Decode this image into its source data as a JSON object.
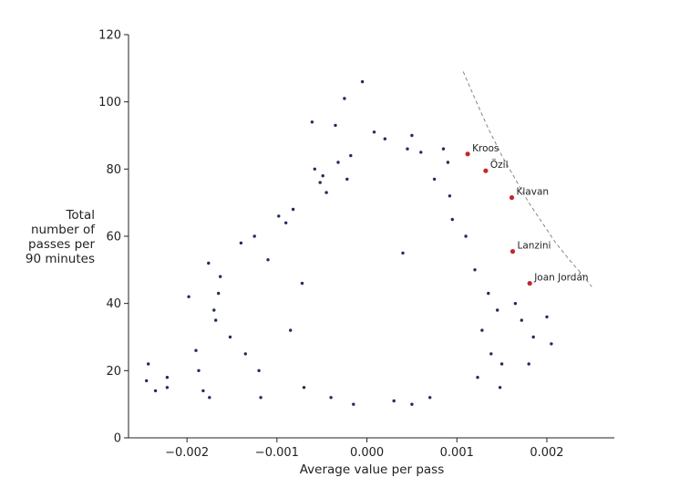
{
  "chart_data": {
    "type": "scatter",
    "xlabel": "Average value per pass",
    "ylabel_lines": [
      "Total",
      "number of",
      "passes per",
      "90 minutes"
    ],
    "xlim": [
      -0.00265,
      0.00275
    ],
    "ylim": [
      0,
      120
    ],
    "xticks": [
      -0.002,
      -0.001,
      0.0,
      0.001,
      0.002
    ],
    "xtick_labels": [
      "−0.002",
      "−0.001",
      "0.000",
      "0.001",
      "0.002"
    ],
    "yticks": [
      0,
      20,
      40,
      60,
      80,
      100,
      120
    ],
    "ytick_labels": [
      "0",
      "20",
      "40",
      "60",
      "80",
      "100",
      "120"
    ],
    "grid": false,
    "colors": {
      "points": "#1f2f5a",
      "highlight": "#c0282d",
      "curve": "#888888"
    },
    "series": [
      {
        "role": "players",
        "x": [
          -0.00243,
          -0.00245,
          -0.00235,
          -0.00222,
          -0.00222,
          -0.0019,
          -0.00198,
          -0.00187,
          -0.00182,
          -0.00175,
          -0.00176,
          -0.0017,
          -0.00165,
          -0.00152,
          -0.00163,
          -0.0014,
          -0.0011,
          -0.00125,
          -0.00098,
          -0.00082,
          -0.00072,
          -0.00061,
          -0.00052,
          -0.00045,
          -0.00035,
          -0.00025,
          -0.00018,
          -5e-05,
          8e-05,
          0.0002,
          0.0004,
          0.0005,
          0.0006,
          0.00075,
          0.00085,
          0.00095,
          -0.00058,
          -0.00049,
          -0.00032,
          -0.00022,
          0.00045,
          0.0009,
          0.00092,
          0.0011,
          0.0012,
          0.00135,
          0.00145,
          0.0015,
          0.00165,
          0.00172,
          0.0018,
          0.00185,
          0.002,
          0.00205,
          0.00123,
          0.00148,
          0.00138,
          0.00128,
          -0.00168,
          -0.00135,
          -0.00118,
          -0.0012,
          -0.00085,
          -0.0009,
          -0.0007,
          -0.0004,
          -0.00015,
          0.0003,
          0.0005,
          0.0007
        ],
        "y": [
          22,
          17,
          14,
          18,
          15,
          26,
          42,
          20,
          14,
          12,
          52,
          38,
          43,
          30,
          48,
          58,
          53,
          60,
          66,
          68,
          46,
          94,
          76,
          73,
          93,
          101,
          84,
          106,
          91,
          89,
          55,
          90,
          85,
          77,
          86,
          65,
          80,
          78,
          82,
          77,
          86,
          82,
          72,
          60,
          50,
          43,
          38,
          22,
          40,
          35,
          22,
          30,
          36,
          28,
          18,
          15,
          25,
          32,
          35,
          25,
          12,
          20,
          32,
          64,
          15,
          12,
          10,
          11,
          10,
          12
        ]
      }
    ],
    "highlighted_players": [
      {
        "name": "Kroos",
        "x": 0.00112,
        "y": 84.5
      },
      {
        "name": "Özil",
        "x": 0.00132,
        "y": 79.5
      },
      {
        "name": "Klavan",
        "x": 0.00161,
        "y": 71.5
      },
      {
        "name": "Lanzini",
        "x": 0.00162,
        "y": 55.5
      },
      {
        "name": "Joan Jordán",
        "x": 0.00181,
        "y": 46
      }
    ],
    "frontier_curve": {
      "style": "dashed",
      "x": [
        0.00107,
        0.0012,
        0.00135,
        0.0015,
        0.00165,
        0.0018,
        0.00195,
        0.0021,
        0.00225,
        0.00238,
        0.0025
      ],
      "y": [
        109,
        101,
        92,
        84,
        77,
        70,
        64,
        58,
        53,
        49,
        45
      ]
    }
  }
}
